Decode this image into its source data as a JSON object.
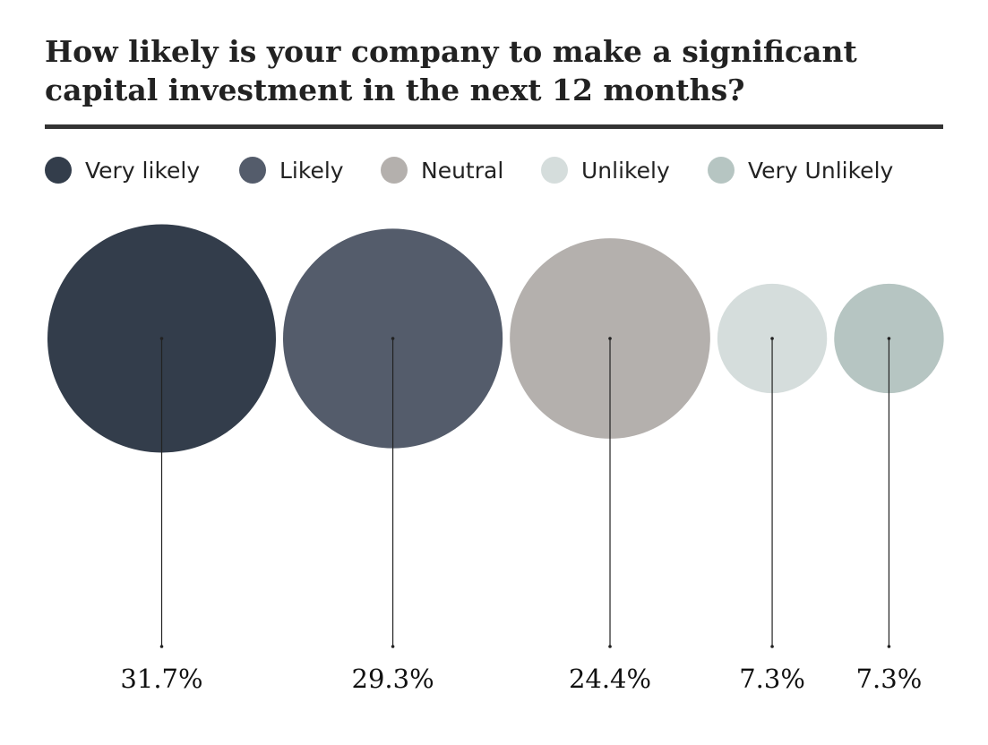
{
  "chart_data": {
    "type": "bubble",
    "title_lines": [
      "How likely is your company to make a significant",
      "capital investment in the next 12 months?"
    ],
    "legend": [
      {
        "name": "Very likely",
        "color": "#333d4b"
      },
      {
        "name": "Likely",
        "color": "#545c6b"
      },
      {
        "name": "Neutral",
        "color": "#b4b0ad"
      },
      {
        "name": "Unlikely",
        "color": "#d5dddc"
      },
      {
        "name": "Very Unlikely",
        "color": "#b6c5c2"
      }
    ],
    "categories": [
      "Very likely",
      "Likely",
      "Neutral",
      "Unlikely",
      "Very Unlikely"
    ],
    "values": [
      31.7,
      29.3,
      24.4,
      7.3,
      7.3
    ],
    "value_labels": [
      "31.7%",
      "29.3%",
      "24.4%",
      "7.3%",
      "7.3%"
    ],
    "legend_position": "top"
  }
}
